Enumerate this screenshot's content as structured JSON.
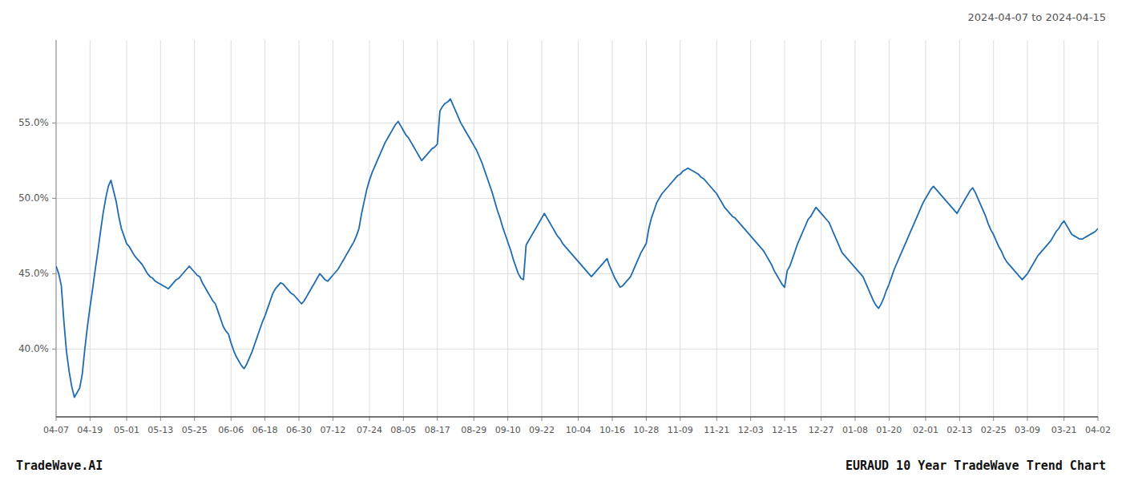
{
  "chart_data": {
    "type": "line",
    "title": "EURAUD 10 Year TradeWave Trend Chart",
    "subtitle": "2024-04-07 to 2024-04-15",
    "annotations": [
      "TradeWave.AI"
    ],
    "color": "#1f6bb0",
    "grid": true,
    "ylim": [
      0.355,
      0.605
    ],
    "yticks": [
      {
        "value": 0.4,
        "label": "40.0%"
      },
      {
        "value": 0.45,
        "label": "45.0%"
      },
      {
        "value": 0.5,
        "label": "50.0%"
      },
      {
        "value": 0.55,
        "label": "55.0%"
      }
    ],
    "categories": [
      "04-07",
      null,
      null,
      null,
      null,
      null,
      null,
      null,
      null,
      null,
      null,
      null,
      null,
      "04-19",
      null,
      null,
      null,
      null,
      null,
      null,
      null,
      null,
      null,
      null,
      null,
      null,
      null,
      "05-01",
      null,
      null,
      null,
      null,
      null,
      null,
      null,
      null,
      null,
      null,
      null,
      null,
      "05-13",
      null,
      null,
      null,
      null,
      null,
      null,
      null,
      null,
      null,
      null,
      null,
      null,
      "05-25",
      null,
      null,
      null,
      null,
      null,
      null,
      null,
      null,
      null,
      null,
      null,
      null,
      null,
      "06-06",
      null,
      null,
      null,
      null,
      null,
      null,
      null,
      null,
      null,
      null,
      null,
      null,
      "06-18",
      null,
      null,
      null,
      null,
      null,
      null,
      null,
      null,
      null,
      null,
      null,
      null,
      "06-30",
      null,
      null,
      null,
      null,
      null,
      null,
      null,
      null,
      null,
      null,
      null,
      null,
      "07-12",
      null,
      null,
      null,
      null,
      null,
      null,
      null,
      null,
      null,
      null,
      null,
      null,
      null,
      "07-24",
      null,
      null,
      null,
      null,
      null,
      null,
      null,
      null,
      null,
      null,
      null,
      null,
      "08-05",
      null,
      null,
      null,
      null,
      null,
      null,
      null,
      null,
      null,
      null,
      null,
      null,
      "08-17",
      null,
      null,
      null,
      null,
      null,
      null,
      null,
      null,
      null,
      null,
      null,
      null,
      null,
      "08-29",
      null,
      null,
      null,
      null,
      null,
      null,
      null,
      null,
      null,
      null,
      null,
      null,
      "09-10",
      null,
      null,
      null,
      null,
      null,
      null,
      null,
      null,
      null,
      null,
      null,
      null,
      "09-22",
      null,
      null,
      null,
      null,
      null,
      null,
      null,
      null,
      null,
      null,
      null,
      null,
      null,
      "10-04",
      null,
      null,
      null,
      null,
      null,
      null,
      null,
      null,
      null,
      null,
      null,
      null,
      "10-16",
      null,
      null,
      null,
      null,
      null,
      null,
      null,
      null,
      null,
      null,
      null,
      null,
      "10-28",
      null,
      null,
      null,
      null,
      null,
      null,
      null,
      null,
      null,
      null,
      null,
      null,
      "11-09",
      null,
      null,
      null,
      null,
      null,
      null,
      null,
      null,
      null,
      null,
      null,
      null,
      null,
      "11-21",
      null,
      null,
      null,
      null,
      null,
      null,
      null,
      null,
      null,
      null,
      null,
      null,
      "12-03",
      null,
      null,
      null,
      null,
      null,
      null,
      null,
      null,
      null,
      null,
      null,
      null,
      "12-15",
      null,
      null,
      null,
      null,
      null,
      null,
      null,
      null,
      null,
      null,
      null,
      null,
      null,
      "12-27",
      null,
      null,
      null,
      null,
      null,
      null,
      null,
      null,
      null,
      null,
      null,
      null,
      "01-08",
      null,
      null,
      null,
      null,
      null,
      null,
      null,
      null,
      null,
      null,
      null,
      null,
      "01-20",
      null,
      null,
      null,
      null,
      null,
      null,
      null,
      null,
      null,
      null,
      null,
      null,
      null,
      "02-01",
      null,
      null,
      null,
      null,
      null,
      null,
      null,
      null,
      null,
      null,
      null,
      null,
      "02-13",
      null,
      null,
      null,
      null,
      null,
      null,
      null,
      null,
      null,
      null,
      null,
      null,
      "02-25",
      null,
      null,
      null,
      null,
      null,
      null,
      null,
      null,
      null,
      null,
      null,
      null,
      "03-09",
      null,
      null,
      null,
      null,
      null,
      null,
      null,
      null,
      null,
      null,
      null,
      null,
      null,
      "03-21",
      null,
      null,
      null,
      null,
      null,
      null,
      null,
      null,
      null,
      null,
      null,
      null,
      "04-02"
    ],
    "values": [
      0.455,
      0.45,
      0.442,
      0.418,
      0.398,
      0.385,
      0.375,
      0.368,
      0.371,
      0.374,
      0.383,
      0.4,
      0.415,
      0.428,
      0.44,
      0.453,
      0.465,
      0.478,
      0.49,
      0.5,
      0.508,
      0.512,
      0.505,
      0.498,
      0.488,
      0.48,
      0.475,
      0.47,
      0.468,
      0.465,
      0.462,
      0.46,
      0.458,
      0.456,
      0.453,
      0.45,
      0.448,
      0.447,
      0.445,
      0.444,
      0.443,
      0.442,
      0.441,
      0.44,
      0.442,
      0.444,
      0.446,
      0.447,
      0.449,
      0.451,
      0.453,
      0.455,
      0.453,
      0.451,
      0.449,
      0.448,
      0.444,
      0.441,
      0.438,
      0.435,
      0.432,
      0.43,
      0.425,
      0.42,
      0.415,
      0.412,
      0.41,
      0.404,
      0.399,
      0.395,
      0.392,
      0.389,
      0.387,
      0.39,
      0.394,
      0.398,
      0.403,
      0.408,
      0.413,
      0.418,
      0.422,
      0.427,
      0.432,
      0.437,
      0.44,
      0.442,
      0.444,
      0.443,
      0.441,
      0.439,
      0.437,
      0.436,
      0.434,
      0.432,
      0.43,
      0.432,
      0.435,
      0.438,
      0.441,
      0.444,
      0.447,
      0.45,
      0.448,
      0.446,
      0.445,
      0.447,
      0.449,
      0.451,
      0.453,
      0.456,
      0.459,
      0.462,
      0.465,
      0.468,
      0.471,
      0.475,
      0.48,
      0.49,
      0.498,
      0.506,
      0.512,
      0.517,
      0.521,
      0.525,
      0.529,
      0.533,
      0.537,
      0.54,
      0.543,
      0.546,
      0.549,
      0.551,
      0.548,
      0.545,
      0.542,
      0.54,
      0.537,
      0.534,
      0.531,
      0.528,
      0.525,
      0.527,
      0.529,
      0.531,
      0.533,
      0.534,
      0.536,
      0.558,
      0.561,
      0.563,
      0.564,
      0.566,
      0.562,
      0.558,
      0.554,
      0.55,
      0.547,
      0.544,
      0.541,
      0.538,
      0.535,
      0.532,
      0.528,
      0.524,
      0.519,
      0.514,
      0.509,
      0.504,
      0.498,
      0.492,
      0.487,
      0.481,
      0.476,
      0.471,
      0.466,
      0.46,
      0.455,
      0.45,
      0.447,
      0.446,
      0.469,
      0.472,
      0.475,
      0.478,
      0.481,
      0.484,
      0.487,
      0.49,
      0.487,
      0.484,
      0.481,
      0.478,
      0.475,
      0.473,
      0.47,
      0.468,
      0.466,
      0.464,
      0.462,
      0.46,
      0.458,
      0.456,
      0.454,
      0.452,
      0.45,
      0.448,
      0.45,
      0.452,
      0.454,
      0.456,
      0.458,
      0.46,
      0.455,
      0.451,
      0.447,
      0.444,
      0.441,
      0.442,
      0.444,
      0.446,
      0.448,
      0.452,
      0.456,
      0.46,
      0.464,
      0.467,
      0.47,
      0.48,
      0.487,
      0.492,
      0.497,
      0.5,
      0.503,
      0.505,
      0.507,
      0.509,
      0.511,
      0.513,
      0.515,
      0.516,
      0.518,
      0.519,
      0.52,
      0.519,
      0.518,
      0.517,
      0.516,
      0.514,
      0.513,
      0.511,
      0.509,
      0.507,
      0.505,
      0.503,
      0.5,
      0.497,
      0.494,
      0.492,
      0.49,
      0.488,
      0.487,
      0.485,
      0.483,
      0.481,
      0.479,
      0.477,
      0.475,
      0.473,
      0.471,
      0.469,
      0.467,
      0.465,
      0.462,
      0.459,
      0.456,
      0.452,
      0.449,
      0.446,
      0.443,
      0.441,
      0.452,
      0.455,
      0.46,
      0.465,
      0.47,
      0.474,
      0.478,
      0.482,
      0.486,
      0.488,
      0.491,
      0.494,
      0.492,
      0.49,
      0.488,
      0.486,
      0.484,
      0.48,
      0.476,
      0.472,
      0.468,
      0.464,
      0.462,
      0.46,
      0.458,
      0.456,
      0.454,
      0.452,
      0.45,
      0.448,
      0.444,
      0.44,
      0.436,
      0.432,
      0.429,
      0.427,
      0.43,
      0.434,
      0.439,
      0.443,
      0.448,
      0.453,
      0.457,
      0.461,
      0.465,
      0.469,
      0.473,
      0.477,
      0.481,
      0.485,
      0.489,
      0.493,
      0.497,
      0.5,
      0.503,
      0.506,
      0.508,
      0.506,
      0.504,
      0.502,
      0.5,
      0.498,
      0.496,
      0.494,
      0.492,
      0.49,
      0.493,
      0.496,
      0.499,
      0.502,
      0.505,
      0.507,
      0.504,
      0.5,
      0.496,
      0.492,
      0.488,
      0.483,
      0.479,
      0.476,
      0.472,
      0.468,
      0.465,
      0.461,
      0.458,
      0.456,
      0.454,
      0.452,
      0.45,
      0.448,
      0.446,
      0.448,
      0.45,
      0.453,
      0.456,
      0.459,
      0.462,
      0.464,
      0.466,
      0.468,
      0.47,
      0.472,
      0.475,
      0.478,
      0.48,
      0.483,
      0.485,
      0.482,
      0.479,
      0.476,
      0.475,
      0.474,
      0.473,
      0.473,
      0.474,
      0.475,
      0.476,
      0.477,
      0.478,
      0.48
    ]
  }
}
